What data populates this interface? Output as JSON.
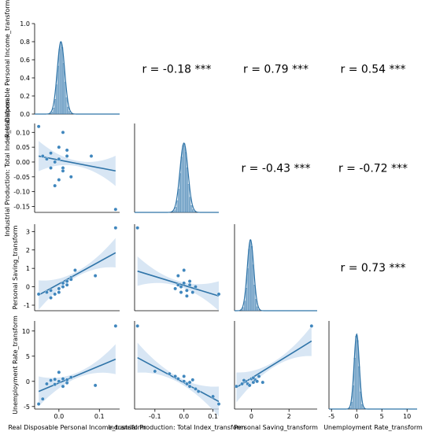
{
  "chart_data": {
    "type": "pairplot",
    "variables": [
      "Real Disposable Personal Income_transform",
      "Industrial Production: Total Index_transform",
      "Personal Saving_transform",
      "Unemployment Rate_transform"
    ],
    "axes": [
      {
        "xlim": [
          -0.06,
          0.15
        ],
        "xticks": [
          0.0,
          0.1
        ],
        "xtick_labels": [
          "0.0",
          "0.1"
        ]
      },
      {
        "xlim": [
          -0.17,
          0.12
        ],
        "xticks": [
          -0.1,
          0.0,
          0.1
        ],
        "xtick_labels": [
          "-0.1",
          "0.0",
          "0.1"
        ]
      },
      {
        "xlim": [
          -0.9,
          3.5
        ],
        "xticks": [
          0,
          2
        ],
        "xtick_labels": [
          "0",
          "2"
        ]
      },
      {
        "xlim": [
          -5.5,
          12.0
        ],
        "xticks": [
          -5,
          0,
          5,
          10
        ],
        "xtick_labels": [
          "-5",
          "0",
          "5",
          "10"
        ]
      }
    ],
    "row_ylims": [
      {
        "ylim": [
          0.0,
          1.0
        ],
        "yticks": [
          0.0,
          0.2,
          0.4,
          0.6,
          0.8,
          1.0
        ],
        "ytick_labels": [
          "0.0",
          "0.2",
          "0.4",
          "0.6",
          "0.8",
          "1.0"
        ]
      },
      {
        "ylim": [
          -0.17,
          0.13
        ],
        "yticks": [
          -0.15,
          -0.1,
          -0.05,
          0.0,
          0.05,
          0.1
        ],
        "ytick_labels": [
          "-0.15",
          "-0.10",
          "-0.05",
          "0.00",
          "0.05",
          "0.10"
        ]
      },
      {
        "ylim": [
          -1.3,
          3.4
        ],
        "yticks": [
          -1,
          0,
          1,
          2,
          3
        ],
        "ytick_labels": [
          "-1",
          "0",
          "1",
          "2",
          "3"
        ]
      },
      {
        "ylim": [
          -5.5,
          12.0
        ],
        "yticks": [
          -5,
          0,
          5,
          10
        ],
        "ytick_labels": [
          "-5",
          "0",
          "5",
          "10"
        ]
      }
    ],
    "correlations": [
      {
        "row": 0,
        "col": 1,
        "label": "r = -0.18 ***"
      },
      {
        "row": 0,
        "col": 2,
        "label": "r = 0.79 ***"
      },
      {
        "row": 0,
        "col": 3,
        "label": "r = 0.54 ***"
      },
      {
        "row": 1,
        "col": 2,
        "label": "r = -0.43 ***"
      },
      {
        "row": 1,
        "col": 3,
        "label": "r = -0.72 ***"
      },
      {
        "row": 2,
        "col": 3,
        "label": "r = 0.73 ***"
      }
    ],
    "regressions": [
      {
        "row": 1,
        "col": 0,
        "x": [
          -0.05,
          0.14
        ],
        "y": [
          0.02,
          -0.03
        ]
      },
      {
        "row": 2,
        "col": 0,
        "x": [
          -0.05,
          0.14
        ],
        "y": [
          -0.45,
          1.85
        ]
      },
      {
        "row": 2,
        "col": 1,
        "x": [
          -0.16,
          0.12
        ],
        "y": [
          0.85,
          -0.5
        ]
      },
      {
        "row": 3,
        "col": 0,
        "x": [
          -0.05,
          0.14
        ],
        "y": [
          -2.0,
          4.4
        ]
      },
      {
        "row": 3,
        "col": 1,
        "x": [
          -0.16,
          0.12
        ],
        "y": [
          4.7,
          -4.0
        ]
      },
      {
        "row": 3,
        "col": 2,
        "x": [
          -0.8,
          3.2
        ],
        "y": [
          -1.2,
          8.0
        ]
      }
    ],
    "scatter": [
      {
        "row": 1,
        "col": 0,
        "points": [
          [
            -0.05,
            0.12
          ],
          [
            0.14,
            -0.16
          ],
          [
            -0.04,
            0.02
          ],
          [
            -0.03,
            0.01
          ],
          [
            -0.02,
            0.03
          ],
          [
            -0.01,
            0.0
          ],
          [
            0.0,
            0.01
          ],
          [
            0.01,
            -0.02
          ],
          [
            0.02,
            0.04
          ],
          [
            0.0,
            -0.06
          ],
          [
            0.01,
            0.1
          ],
          [
            0.03,
            -0.05
          ],
          [
            -0.02,
            -0.02
          ],
          [
            0.02,
            0.02
          ],
          [
            0.08,
            0.02
          ],
          [
            -0.01,
            -0.08
          ],
          [
            0.0,
            0.05
          ],
          [
            0.01,
            -0.03
          ]
        ]
      },
      {
        "row": 2,
        "col": 0,
        "points": [
          [
            -0.05,
            -0.4
          ],
          [
            -0.03,
            -0.3
          ],
          [
            -0.02,
            -0.2
          ],
          [
            0.0,
            -0.1
          ],
          [
            0.01,
            0.0
          ],
          [
            0.02,
            0.3
          ],
          [
            0.03,
            0.5
          ],
          [
            0.04,
            0.9
          ],
          [
            0.09,
            0.6
          ],
          [
            0.14,
            3.2
          ],
          [
            0.0,
            -0.3
          ],
          [
            0.01,
            0.2
          ],
          [
            -0.01,
            -0.4
          ],
          [
            0.02,
            0.1
          ],
          [
            0.03,
            0.4
          ],
          [
            -0.02,
            -0.6
          ]
        ]
      },
      {
        "row": 2,
        "col": 1,
        "points": [
          [
            -0.16,
            3.2
          ],
          [
            -0.03,
            -0.1
          ],
          [
            -0.02,
            0.1
          ],
          [
            -0.01,
            0.0
          ],
          [
            0.0,
            0.2
          ],
          [
            0.01,
            -0.2
          ],
          [
            0.02,
            0.1
          ],
          [
            0.03,
            -0.3
          ],
          [
            0.0,
            0.9
          ],
          [
            -0.02,
            0.6
          ],
          [
            0.04,
            0.0
          ],
          [
            0.12,
            -0.4
          ],
          [
            0.01,
            -0.5
          ],
          [
            0.02,
            0.3
          ],
          [
            -0.01,
            -0.3
          ]
        ]
      },
      {
        "row": 3,
        "col": 0,
        "points": [
          [
            -0.05,
            -4.5
          ],
          [
            -0.04,
            -3.5
          ],
          [
            -0.03,
            -0.5
          ],
          [
            -0.02,
            0.2
          ],
          [
            -0.01,
            -0.6
          ],
          [
            0.0,
            0.0
          ],
          [
            0.01,
            0.5
          ],
          [
            0.02,
            -0.3
          ],
          [
            0.03,
            0.8
          ],
          [
            0.0,
            1.8
          ],
          [
            0.09,
            -0.8
          ],
          [
            0.14,
            11.0
          ],
          [
            0.01,
            -1.0
          ],
          [
            0.02,
            0.3
          ],
          [
            -0.01,
            0.4
          ]
        ]
      },
      {
        "row": 3,
        "col": 1,
        "points": [
          [
            -0.16,
            11.0
          ],
          [
            -0.1,
            2.0
          ],
          [
            -0.05,
            1.5
          ],
          [
            -0.03,
            1.0
          ],
          [
            -0.02,
            0.5
          ],
          [
            0.0,
            0.0
          ],
          [
            0.01,
            -0.5
          ],
          [
            0.02,
            -1.0
          ],
          [
            0.03,
            0.3
          ],
          [
            0.04,
            -1.5
          ],
          [
            0.05,
            -2.0
          ],
          [
            0.1,
            -3.0
          ],
          [
            0.12,
            -4.5
          ],
          [
            0.0,
            1.0
          ],
          [
            0.02,
            -0.2
          ]
        ]
      },
      {
        "row": 3,
        "col": 2,
        "points": [
          [
            -0.8,
            -1.0
          ],
          [
            -0.5,
            -0.5
          ],
          [
            -0.3,
            0.0
          ],
          [
            -0.2,
            -0.5
          ],
          [
            0.0,
            0.5
          ],
          [
            0.1,
            -0.2
          ],
          [
            0.2,
            0.3
          ],
          [
            0.4,
            1.0
          ],
          [
            0.6,
            -0.2
          ],
          [
            -0.1,
            -0.8
          ],
          [
            0.3,
            0.0
          ],
          [
            3.2,
            11.0
          ],
          [
            0.1,
            0.7
          ],
          [
            -0.4,
            0.2
          ]
        ]
      }
    ],
    "histograms": [
      {
        "col": 0,
        "center": 0.005,
        "width": 0.008,
        "peak": 0.8
      },
      {
        "col": 1,
        "center": 0.0,
        "width": 0.012,
        "peak": 0.78
      },
      {
        "col": 2,
        "center": -0.05,
        "width": 0.15,
        "peak": 0.82
      },
      {
        "col": 3,
        "center": 0.0,
        "width": 0.45,
        "peak": 0.85
      }
    ],
    "colors": {
      "main": "#2f74a8",
      "point": "#3f86bd",
      "ci": "#c7dbef",
      "bar": "#6c9ec6"
    }
  }
}
